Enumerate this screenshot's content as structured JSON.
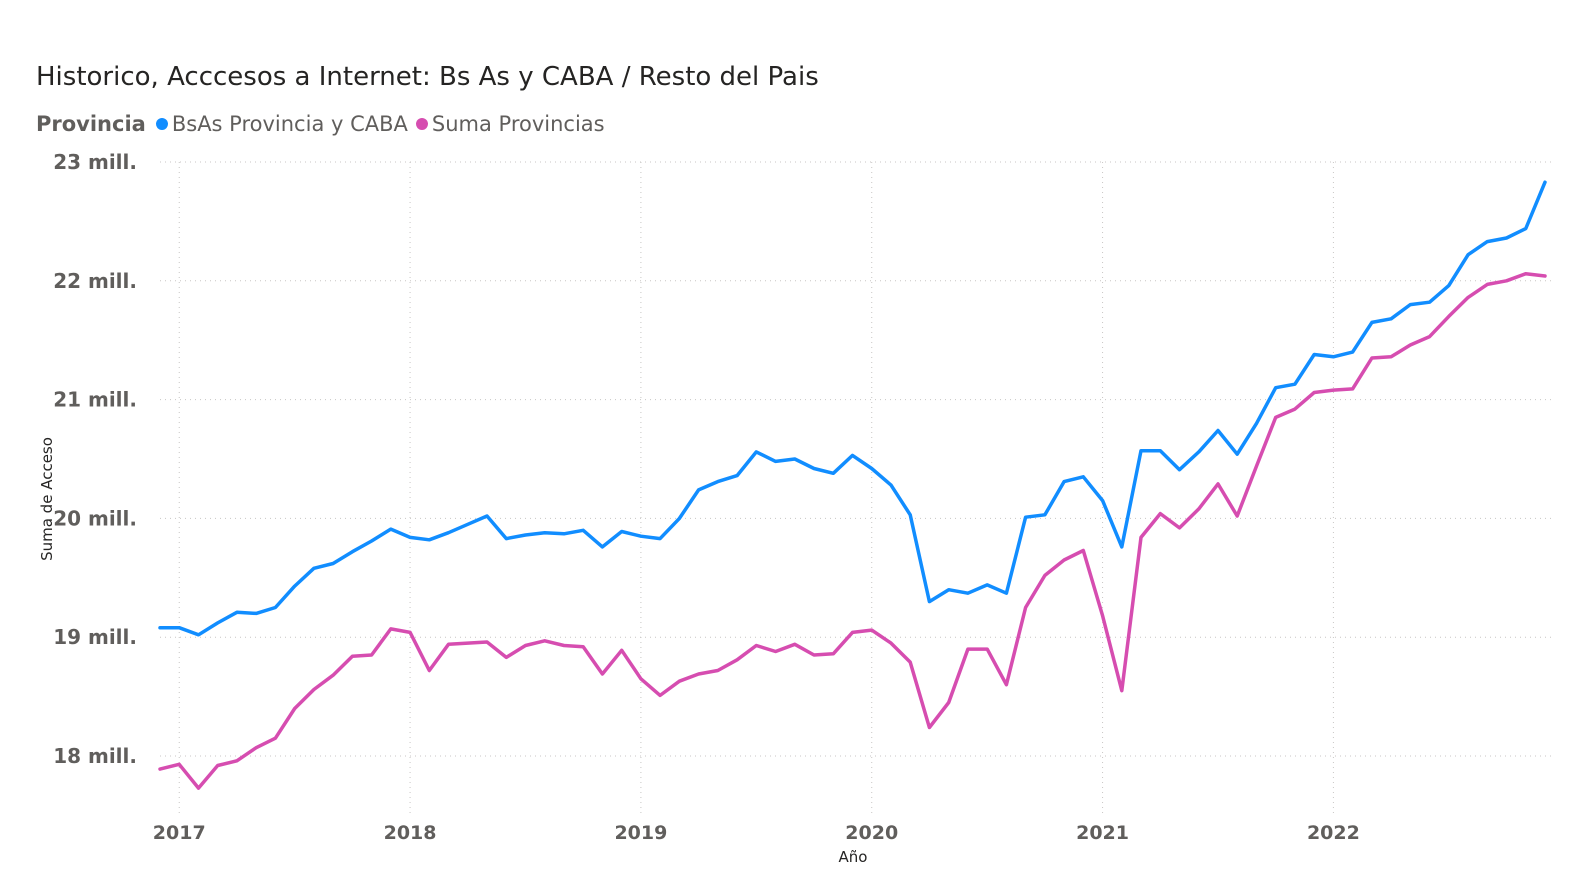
{
  "chart_data": {
    "type": "line",
    "title": "Historico, Acccesos a Internet: Bs As y CABA / Resto del Pais",
    "legend_title": "Provincia",
    "xlabel": "Año",
    "ylabel": "Suma de Acceso",
    "x_ticks": [
      "2017",
      "2018",
      "2019",
      "2020",
      "2021",
      "2022"
    ],
    "y_ticks": [
      "18 mill.",
      "19 mill.",
      "20 mill.",
      "21 mill.",
      "22 mill.",
      "23 mill."
    ],
    "ylim": [
      17.5,
      23.0
    ],
    "xlim": [
      "2016-12",
      "2022-12"
    ],
    "grid": true,
    "legend_position": "top-left",
    "x": [
      "2016-12",
      "2017-01",
      "2017-02",
      "2017-03",
      "2017-04",
      "2017-05",
      "2017-06",
      "2017-07",
      "2017-08",
      "2017-09",
      "2017-10",
      "2017-11",
      "2017-12",
      "2018-01",
      "2018-02",
      "2018-03",
      "2018-04",
      "2018-05",
      "2018-06",
      "2018-07",
      "2018-08",
      "2018-09",
      "2018-10",
      "2018-11",
      "2018-12",
      "2019-01",
      "2019-02",
      "2019-03",
      "2019-04",
      "2019-05",
      "2019-06",
      "2019-07",
      "2019-08",
      "2019-09",
      "2019-10",
      "2019-11",
      "2019-12",
      "2020-01",
      "2020-02",
      "2020-03",
      "2020-04",
      "2020-05",
      "2020-06",
      "2020-07",
      "2020-08",
      "2020-09",
      "2020-10",
      "2020-11",
      "2020-12",
      "2021-01",
      "2021-02",
      "2021-03",
      "2021-04",
      "2021-05",
      "2021-06",
      "2021-07",
      "2021-08",
      "2021-09",
      "2021-10",
      "2021-11",
      "2021-12",
      "2022-01",
      "2022-02",
      "2022-03",
      "2022-04",
      "2022-05",
      "2022-06",
      "2022-07",
      "2022-08",
      "2022-09",
      "2022-10",
      "2022-11",
      "2022-12"
    ],
    "series": [
      {
        "name": "BsAs Provincia y CABA",
        "color": "#118DFF",
        "values": [
          19.08,
          19.08,
          19.02,
          19.12,
          19.21,
          19.2,
          19.25,
          19.43,
          19.58,
          19.62,
          19.72,
          19.81,
          19.91,
          19.84,
          19.82,
          19.88,
          19.95,
          20.02,
          19.83,
          19.86,
          19.88,
          19.87,
          19.9,
          19.76,
          19.89,
          19.85,
          19.83,
          20.0,
          20.24,
          20.31,
          20.36,
          20.56,
          20.48,
          20.5,
          20.42,
          20.38,
          20.53,
          20.42,
          20.28,
          20.03,
          19.3,
          19.4,
          19.37,
          19.44,
          19.37,
          20.01,
          20.03,
          20.31,
          20.35,
          20.15,
          19.76,
          20.57,
          20.57,
          20.41,
          20.56,
          20.74,
          20.54,
          20.8,
          21.1,
          21.13,
          21.38,
          21.36,
          21.4,
          21.65,
          21.68,
          21.8,
          21.82,
          21.96,
          22.22,
          22.33,
          22.36,
          22.44,
          22.83
        ]
      },
      {
        "name": "Suma Provincias",
        "color": "#D64DB0",
        "values": [
          17.89,
          17.93,
          17.73,
          17.92,
          17.96,
          18.07,
          18.15,
          18.4,
          18.56,
          18.68,
          18.84,
          18.85,
          19.07,
          19.04,
          18.72,
          18.94,
          18.95,
          18.96,
          18.83,
          18.93,
          18.97,
          18.93,
          18.92,
          18.69,
          18.89,
          18.65,
          18.51,
          18.63,
          18.69,
          18.72,
          18.81,
          18.93,
          18.88,
          18.94,
          18.85,
          18.86,
          19.04,
          19.06,
          18.95,
          18.79,
          18.24,
          18.45,
          18.9,
          18.9,
          18.6,
          19.25,
          19.52,
          19.65,
          19.73,
          19.18,
          18.55,
          19.84,
          20.04,
          19.92,
          20.08,
          20.29,
          20.02,
          20.44,
          20.85,
          20.92,
          21.06,
          21.08,
          21.09,
          21.35,
          21.36,
          21.46,
          21.53,
          21.7,
          21.86,
          21.97,
          22.0,
          22.06,
          22.04
        ]
      }
    ]
  }
}
